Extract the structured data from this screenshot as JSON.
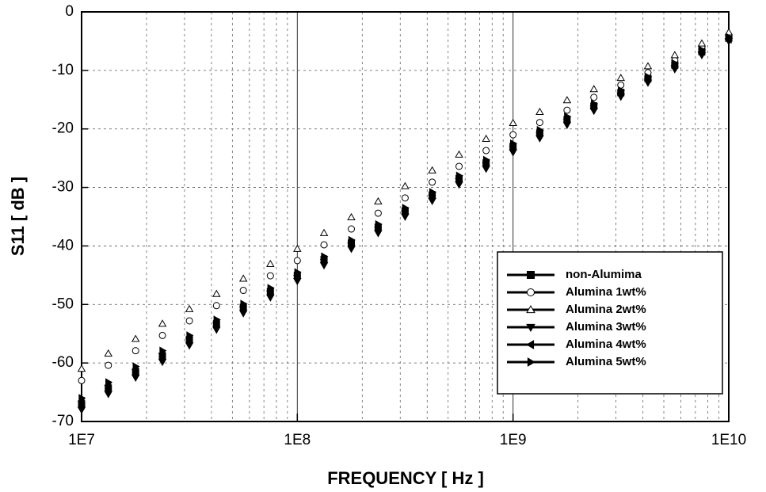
{
  "chart_data": {
    "type": "scatter",
    "xlabel": "FREQUENCY [ Hz ]",
    "ylabel": "S11 [ dB ]",
    "xscale": "log",
    "grid": true,
    "legend": "lower right",
    "xlim": [
      10000000,
      10000000000
    ],
    "ylim": [
      -70,
      0
    ],
    "xticks": [
      {
        "value": 10000000,
        "label": "1E7"
      },
      {
        "value": 100000000,
        "label": "1E8"
      },
      {
        "value": 1000000000,
        "label": "1E9"
      },
      {
        "value": 10000000000,
        "label": "1E10"
      }
    ],
    "yticks": [
      -70,
      -60,
      -50,
      -40,
      -30,
      -20,
      -10,
      0
    ],
    "x": [
      10000000,
      13300000,
      17800000,
      23700000,
      31600000,
      42200000,
      56200000,
      75000000,
      100000000,
      133000000,
      178000000,
      237000000,
      316000000,
      422000000,
      562000000,
      750000000,
      1000000000,
      1330000000,
      1780000000,
      2370000000,
      3160000000,
      4220000000,
      5620000000,
      7500000000,
      10000000000
    ],
    "series": [
      {
        "name": "non-Alumima",
        "color": "#000000",
        "marker": "square",
        "filled": true,
        "values": [
          -67,
          -64.3,
          -61.5,
          -58.8,
          -56,
          -53.3,
          -50.5,
          -47.8,
          -45,
          -42.3,
          -39.5,
          -36.8,
          -34,
          -31.3,
          -28.5,
          -25.8,
          -23,
          -20.7,
          -18.4,
          -16.1,
          -13.8,
          -11.4,
          -9.1,
          -6.8,
          -4.5
        ]
      },
      {
        "name": "Alumina 1wt%",
        "color": "#000000",
        "marker": "circle",
        "filled": false,
        "values": [
          -63,
          -60.4,
          -57.9,
          -55.3,
          -52.8,
          -50.2,
          -47.6,
          -45.1,
          -42.5,
          -39.8,
          -37.1,
          -34.4,
          -31.8,
          -29.1,
          -26.4,
          -23.7,
          -21,
          -18.9,
          -16.8,
          -14.6,
          -12.5,
          -10.4,
          -8.3,
          -6.1,
          -4
        ]
      },
      {
        "name": "Alumina 2wt%",
        "color": "#000000",
        "marker": "triangle-up",
        "filled": false,
        "values": [
          -61,
          -58.4,
          -55.9,
          -53.3,
          -50.8,
          -48.2,
          -45.6,
          -43.1,
          -40.5,
          -37.8,
          -35.1,
          -32.4,
          -29.8,
          -27.1,
          -24.4,
          -21.7,
          -19,
          -17.1,
          -15.1,
          -13.2,
          -11.3,
          -9.3,
          -7.4,
          -5.4,
          -3.5
        ]
      },
      {
        "name": "Alumina 3wt%",
        "color": "#000000",
        "marker": "triangle-down",
        "filled": true,
        "values": [
          -68,
          -65.3,
          -62.5,
          -59.8,
          -57,
          -54.3,
          -51.5,
          -48.8,
          -46,
          -43.3,
          -40.5,
          -37.8,
          -35,
          -32.3,
          -29.5,
          -26.8,
          -24,
          -21.6,
          -19.3,
          -16.9,
          -14.5,
          -12.1,
          -9.8,
          -7.4,
          -5
        ]
      },
      {
        "name": "Alumina 4wt%",
        "color": "#000000",
        "marker": "triangle-left",
        "filled": true,
        "values": [
          -66.5,
          -63.8,
          -61.1,
          -58.4,
          -55.8,
          -53.1,
          -50.4,
          -47.7,
          -45,
          -42.3,
          -39.5,
          -36.8,
          -34,
          -31.3,
          -28.5,
          -25.8,
          -23,
          -20.7,
          -18.4,
          -16.1,
          -13.8,
          -11.4,
          -9.1,
          -6.8,
          -4.7
        ]
      },
      {
        "name": "Alumina 5wt%",
        "color": "#000000",
        "marker": "triangle-right",
        "filled": true,
        "values": [
          -66,
          -63.3,
          -60.6,
          -57.9,
          -55.3,
          -52.6,
          -49.9,
          -47.2,
          -44.5,
          -41.8,
          -39,
          -36.3,
          -33.5,
          -30.8,
          -28,
          -25.3,
          -22.5,
          -20.2,
          -17.9,
          -15.7,
          -13.4,
          -11.1,
          -8.8,
          -6.5,
          -4.3
        ]
      }
    ]
  }
}
